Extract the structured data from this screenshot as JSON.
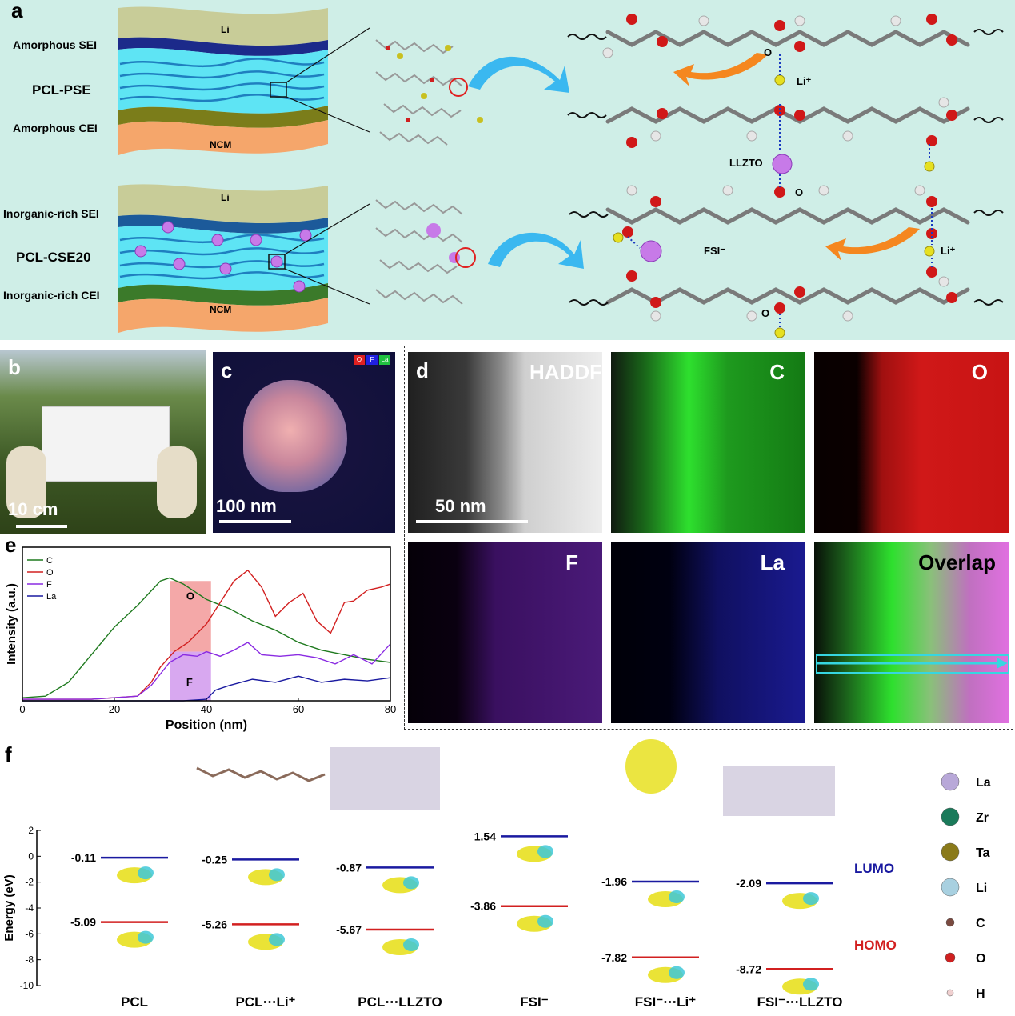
{
  "panel_labels": {
    "a": "a",
    "b": "b",
    "c": "c",
    "d": "d",
    "e": "e",
    "f": "f"
  },
  "panel_a": {
    "top": {
      "li": "Li",
      "sei": "Amorphous SEI",
      "name": "PCL-PSE",
      "cei": "Amorphous CEI",
      "ncm": "NCM"
    },
    "bottom": {
      "li": "Li",
      "sei": "Inorganic-rich SEI",
      "name": "PCL-CSE20",
      "cei": "Inorganic-rich CEI",
      "ncm": "NCM"
    },
    "chem": {
      "o1": "O",
      "li1": "Li⁺",
      "llzto": "LLZTO",
      "o2": "O",
      "fsi": "FSI⁻",
      "li2": "Li⁺",
      "o3": "O"
    }
  },
  "panel_b": {
    "scale": "10 cm"
  },
  "panel_c": {
    "scale": "100 nm",
    "legend": [
      "O",
      "F",
      "La"
    ]
  },
  "panel_d": {
    "labels": [
      "HADDF",
      "C",
      "O",
      "F",
      "La",
      "Overlap"
    ],
    "scale": "50 nm",
    "colors": {
      "C": "#2ee02e",
      "O": "#e81818",
      "F": "#8a2be2",
      "La": "#1a1aff"
    }
  },
  "chart_data": [
    {
      "type": "line",
      "xlabel": "Position (nm)",
      "ylabel": "Intensity (a.u.)",
      "xlim": [
        0,
        80
      ],
      "xticks": [
        "0",
        "20",
        "40",
        "60",
        "80"
      ],
      "legend": [
        "C",
        "O",
        "F",
        "La"
      ],
      "region_labels": [
        "O",
        "F"
      ],
      "series": [
        {
          "name": "C",
          "color": "#1f7a1f",
          "x": [
            0,
            5,
            10,
            15,
            20,
            25,
            30,
            32,
            35,
            40,
            45,
            50,
            55,
            60,
            65,
            70,
            75,
            80
          ],
          "y": [
            0.02,
            0.03,
            0.12,
            0.3,
            0.48,
            0.62,
            0.78,
            0.8,
            0.76,
            0.66,
            0.6,
            0.52,
            0.46,
            0.38,
            0.33,
            0.3,
            0.27,
            0.25
          ]
        },
        {
          "name": "O",
          "color": "#d22020",
          "x": [
            0,
            15,
            25,
            28,
            30,
            33,
            36,
            40,
            43,
            46,
            49,
            52,
            55,
            58,
            61,
            64,
            67,
            70,
            72,
            75,
            78,
            80
          ],
          "y": [
            0.01,
            0.01,
            0.03,
            0.12,
            0.22,
            0.32,
            0.38,
            0.5,
            0.64,
            0.78,
            0.85,
            0.74,
            0.55,
            0.64,
            0.7,
            0.52,
            0.44,
            0.64,
            0.65,
            0.72,
            0.74,
            0.76
          ]
        },
        {
          "name": "F",
          "color": "#8a2be2",
          "x": [
            0,
            15,
            25,
            28,
            32,
            35,
            38,
            40,
            43,
            46,
            49,
            52,
            56,
            60,
            64,
            68,
            72,
            76,
            80
          ],
          "y": [
            0.01,
            0.01,
            0.03,
            0.1,
            0.25,
            0.3,
            0.29,
            0.32,
            0.29,
            0.33,
            0.38,
            0.3,
            0.29,
            0.3,
            0.28,
            0.24,
            0.3,
            0.24,
            0.37
          ]
        },
        {
          "name": "La",
          "color": "#1a1aa0",
          "x": [
            0,
            30,
            35,
            40,
            42,
            45,
            50,
            55,
            60,
            65,
            70,
            75,
            80
          ],
          "y": [
            0.0,
            0.0,
            0.0,
            0.01,
            0.07,
            0.1,
            0.14,
            0.12,
            0.16,
            0.12,
            0.14,
            0.13,
            0.15
          ]
        }
      ]
    },
    {
      "type": "bar",
      "ylabel": "Energy (eV)",
      "ylim": [
        -10,
        2
      ],
      "yticks": [
        "2",
        "0",
        "-2",
        "-4",
        "-6",
        "-8",
        "-10"
      ],
      "categories": [
        "PCL",
        "PCL⋯Li⁺",
        "PCL⋯LLZTO",
        "FSI⁻",
        "FSI⁻⋯Li⁺",
        "FSI⁻⋯LLZTO"
      ],
      "series": [
        {
          "name": "LUMO",
          "color": "#1a1aa0",
          "values": [
            -0.11,
            -0.25,
            -0.87,
            1.54,
            -1.96,
            -2.09
          ]
        },
        {
          "name": "HOMO",
          "color": "#d22020",
          "values": [
            -5.09,
            -5.26,
            -5.67,
            -3.86,
            -7.82,
            -8.72
          ]
        }
      ],
      "value_labels": {
        "lumo": [
          "-0.11",
          "-0.25",
          "-0.87",
          "1.54",
          "-1.96",
          "-2.09"
        ],
        "homo": [
          "-5.09",
          "-5.26",
          "-5.67",
          "-3.86",
          "-7.82",
          "-8.72"
        ]
      }
    }
  ],
  "panel_f_legend": [
    "La",
    "Zr",
    "Ta",
    "Li",
    "C",
    "O",
    "H"
  ]
}
